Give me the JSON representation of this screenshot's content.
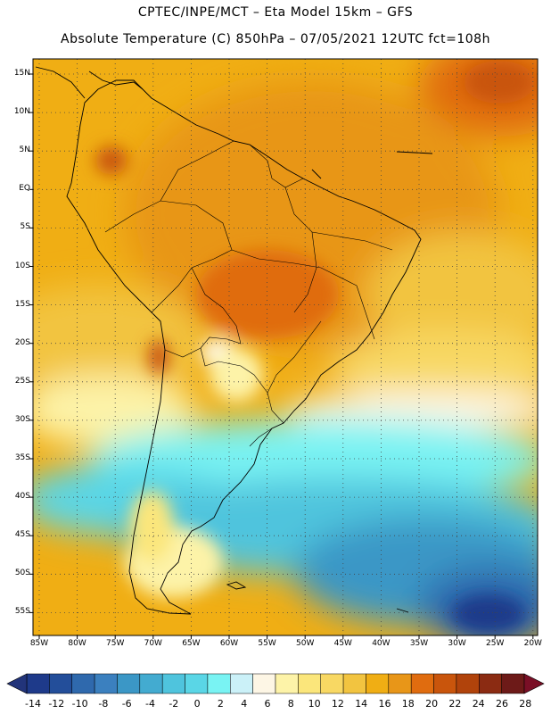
{
  "title_line1": "CPTEC/INPE/MCT –  Eta Model 15km – GFS",
  "title_line2": "Absolute Temperature (C) 850hPa – 07/05/2021 12UTC fct=108h",
  "lat_labels": [
    "15N",
    "10N",
    "5N",
    "EQ",
    "5S",
    "10S",
    "15S",
    "20S",
    "25S",
    "30S",
    "35S",
    "40S",
    "45S",
    "50S",
    "55S"
  ],
  "lon_labels": [
    "85W",
    "80W",
    "75W",
    "70W",
    "65W",
    "60W",
    "55W",
    "50W",
    "45W",
    "40W",
    "35W",
    "30W",
    "25W",
    "20W"
  ],
  "colorbar": {
    "labels": [
      "-14",
      "-12",
      "-10",
      "-8",
      "-6",
      "-4",
      "-2",
      "0",
      "2",
      "4",
      "6",
      "8",
      "10",
      "12",
      "14",
      "16",
      "18",
      "20",
      "22",
      "24",
      "26",
      "28"
    ],
    "colors": [
      "#1e3a8a",
      "#234e9a",
      "#2f69ad",
      "#3b80bf",
      "#3b97c6",
      "#43abd0",
      "#4fc4dd",
      "#5ad6e6",
      "#79f3f3",
      "#cbf1f8",
      "#fdf6e5",
      "#fdf3a8",
      "#fbe67b",
      "#f8d863",
      "#f2c440",
      "#f0ae14",
      "#e89618",
      "#e06c0f",
      "#c9550c",
      "#b1430b",
      "#8b2b12",
      "#6d1a18"
    ],
    "under_color": "#22347a",
    "over_color": "#7a0f26"
  }
}
